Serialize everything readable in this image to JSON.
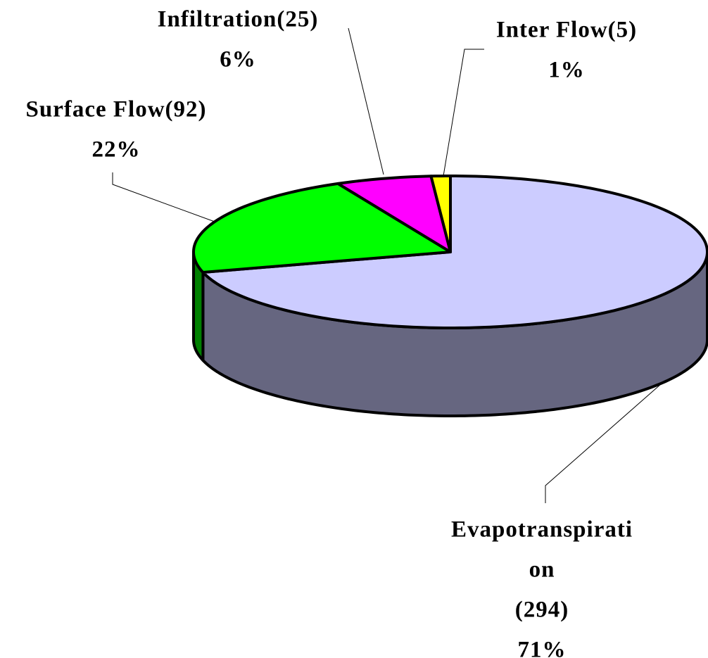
{
  "chart_data": {
    "type": "pie3d",
    "categories": [
      [
        "Evapotranspirati",
        "on",
        "(294)"
      ],
      [
        "Surface Flow(92)"
      ],
      [
        "Infiltration(25)"
      ],
      [
        "Inter Flow(5)"
      ]
    ],
    "values": [
      294,
      92,
      25,
      5
    ],
    "percent_labels": [
      "71%",
      "22%",
      "6%",
      "1%"
    ],
    "colors": [
      "#ccccff",
      "#00ff00",
      "#ff00ff",
      "#ffff00"
    ],
    "side_colors": [
      "#666680",
      "#008000",
      "#800080",
      "#808000"
    ]
  }
}
